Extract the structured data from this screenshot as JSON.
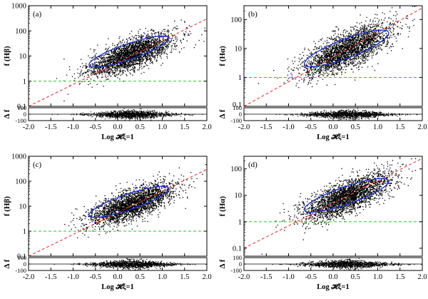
{
  "chart_data": [
    {
      "type": "scatter",
      "panel_label": "(a)",
      "ylabel": "f (Hβ)",
      "residual_ylabel": "Δ f",
      "xlabel": "Log 𝓗ξ=1",
      "xlim": [
        -2.0,
        2.0
      ],
      "ylim": [
        0.1,
        1000
      ],
      "yscale": "log",
      "x_ticks": [
        "-2.0",
        "-1.5",
        "-1.0",
        "-0.5",
        "0.0",
        "0.5",
        "1.0",
        "1.5",
        "2.0"
      ],
      "y_ticks": [
        "0.1",
        "1",
        "10",
        "100",
        "1000"
      ],
      "residual_ylim": [
        -100,
        100
      ],
      "residual_ticks": [
        "100",
        "0",
        "-100"
      ],
      "center": [
        0.3,
        12
      ],
      "spread": [
        0.48,
        0.42
      ],
      "correlation": 0.72,
      "ellipse": {
        "center": [
          0.25,
          15
        ],
        "semi_major": 1.05,
        "semi_minor": 0.28,
        "angle_deg": 33
      },
      "fit_line": {
        "x": [
          -2.0,
          2.0
        ],
        "y": [
          0.1,
          300
        ]
      },
      "reference_line": {
        "y": 1
      }
    },
    {
      "type": "scatter",
      "panel_label": "(b)",
      "ylabel": "f (Hα)",
      "residual_ylabel": "Δ f",
      "xlabel": "Log 𝓗ξ=1",
      "xlim": [
        -2.0,
        2.0
      ],
      "ylim": [
        0.1,
        300
      ],
      "yscale": "log",
      "x_ticks": [
        "-2.0",
        "-1.5",
        "-1.0",
        "-0.5",
        "0.0",
        "0.5",
        "1.0",
        "1.5",
        "2.0"
      ],
      "y_ticks": [
        "1",
        "10",
        "100"
      ],
      "extra_y_ticks": [
        "0.1"
      ],
      "residual_ylim": [
        -100,
        100
      ],
      "residual_ticks": [
        "100",
        "0",
        "-100"
      ],
      "center": [
        0.3,
        9
      ],
      "spread": [
        0.5,
        0.45
      ],
      "correlation": 0.72,
      "ellipse": {
        "center": [
          0.3,
          10
        ],
        "semi_major": 1.1,
        "semi_minor": 0.3,
        "angle_deg": 32
      },
      "fit_line": {
        "x": [
          -2.0,
          2.0
        ],
        "y": [
          0.1,
          250
        ]
      },
      "reference_line": {
        "y": 1
      }
    },
    {
      "type": "scatter",
      "panel_label": "(c)",
      "ylabel": "f (Hβ)",
      "residual_ylabel": "Δ f",
      "xlabel": "Log 𝓗ξ=1",
      "xlim": [
        -2.0,
        2.0
      ],
      "ylim": [
        0.1,
        1000
      ],
      "yscale": "log",
      "x_ticks": [
        "-2.0",
        "-1.5",
        "-1.0",
        "-0.5",
        "0.0",
        "0.5",
        "1.0",
        "1.5",
        "2.0"
      ],
      "y_ticks": [
        "0.1",
        "1",
        "10",
        "100",
        "1000"
      ],
      "residual_ylim": [
        -100,
        100
      ],
      "residual_ticks": [
        "100",
        "0",
        "-100"
      ],
      "center": [
        0.3,
        12
      ],
      "spread": [
        0.48,
        0.42
      ],
      "correlation": 0.72,
      "ellipse": {
        "center": [
          0.25,
          15
        ],
        "semi_major": 1.05,
        "semi_minor": 0.28,
        "angle_deg": 33
      },
      "fit_line": {
        "x": [
          -2.0,
          2.0
        ],
        "y": [
          0.1,
          300
        ]
      },
      "reference_line": {
        "y": 1
      }
    },
    {
      "type": "scatter",
      "panel_label": "(d)",
      "ylabel": "f (Hα)",
      "residual_ylabel": "Δ f",
      "xlabel": "Log 𝓗ξ=1",
      "xlim": [
        -2.0,
        2.0
      ],
      "ylim": [
        0.05,
        300
      ],
      "yscale": "log",
      "x_ticks": [
        "-2.0",
        "-1.5",
        "-1.0",
        "-0.5",
        "0.0",
        "0.5",
        "1.0",
        "1.5",
        "2.0"
      ],
      "y_ticks": [
        "0.1",
        "1",
        "10",
        "100"
      ],
      "residual_ylim": [
        -100,
        100
      ],
      "residual_ticks": [
        "100",
        "0",
        "-100"
      ],
      "center": [
        0.3,
        9
      ],
      "spread": [
        0.5,
        0.45
      ],
      "correlation": 0.72,
      "ellipse": {
        "center": [
          0.3,
          10
        ],
        "semi_major": 1.1,
        "semi_minor": 0.3,
        "angle_deg": 32
      },
      "fit_line": {
        "x": [
          -2.0,
          2.0
        ],
        "y": [
          0.1,
          250
        ]
      },
      "reference_line": {
        "y": 1
      }
    }
  ],
  "colors": {
    "points": "#000000",
    "ellipse": "#1f2fc8",
    "fit_line": "#e8262a",
    "reference_line": "#2ec22e"
  }
}
